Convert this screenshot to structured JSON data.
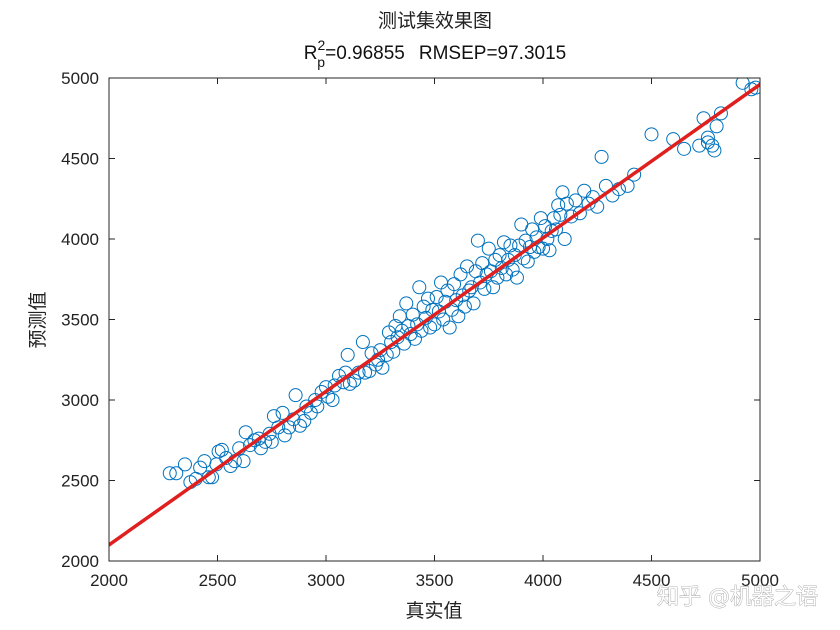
{
  "chart_data": {
    "type": "scatter",
    "title": "测试集效果图",
    "subtitle": {
      "r_base": "R",
      "r_sup": "2",
      "r_sub": "p",
      "r_value": "=0.96855",
      "rmsep": "RMSEP=97.3015"
    },
    "xlabel": "真实值",
    "ylabel": "预测值",
    "xlim": [
      2000,
      5000
    ],
    "ylim": [
      2000,
      5000
    ],
    "xticks": [
      "2000",
      "2500",
      "3000",
      "3500",
      "4000",
      "4500",
      "5000"
    ],
    "yticks": [
      "2000",
      "2500",
      "3000",
      "3500",
      "4000",
      "4500",
      "5000"
    ],
    "grid": false,
    "legend": "none",
    "marker_color": "#0072BD",
    "line_color": "#E01F1F",
    "fit_line": {
      "x": [
        2000,
        5000
      ],
      "y": [
        2100,
        4960
      ]
    },
    "points": [
      [
        2280,
        2545
      ],
      [
        2310,
        2545
      ],
      [
        2350,
        2600
      ],
      [
        2375,
        2490
      ],
      [
        2400,
        2510
      ],
      [
        2420,
        2580
      ],
      [
        2440,
        2620
      ],
      [
        2460,
        2520
      ],
      [
        2475,
        2520
      ],
      [
        2495,
        2600
      ],
      [
        2505,
        2680
      ],
      [
        2520,
        2690
      ],
      [
        2540,
        2640
      ],
      [
        2560,
        2590
      ],
      [
        2580,
        2620
      ],
      [
        2600,
        2700
      ],
      [
        2620,
        2620
      ],
      [
        2630,
        2800
      ],
      [
        2650,
        2720
      ],
      [
        2670,
        2750
      ],
      [
        2690,
        2760
      ],
      [
        2700,
        2700
      ],
      [
        2720,
        2740
      ],
      [
        2740,
        2790
      ],
      [
        2750,
        2740
      ],
      [
        2760,
        2900
      ],
      [
        2780,
        2830
      ],
      [
        2800,
        2920
      ],
      [
        2810,
        2780
      ],
      [
        2830,
        2830
      ],
      [
        2850,
        2880
      ],
      [
        2860,
        3030
      ],
      [
        2880,
        2840
      ],
      [
        2900,
        2870
      ],
      [
        2910,
        2960
      ],
      [
        2930,
        2920
      ],
      [
        2950,
        3000
      ],
      [
        2960,
        2960
      ],
      [
        2980,
        3050
      ],
      [
        3000,
        3080
      ],
      [
        3010,
        3020
      ],
      [
        3030,
        3000
      ],
      [
        3040,
        3090
      ],
      [
        3060,
        3150
      ],
      [
        3080,
        3110
      ],
      [
        3090,
        3170
      ],
      [
        3100,
        3280
      ],
      [
        3110,
        3100
      ],
      [
        3130,
        3120
      ],
      [
        3150,
        3170
      ],
      [
        3170,
        3360
      ],
      [
        3180,
        3170
      ],
      [
        3200,
        3180
      ],
      [
        3210,
        3290
      ],
      [
        3230,
        3220
      ],
      [
        3240,
        3250
      ],
      [
        3250,
        3310
      ],
      [
        3260,
        3200
      ],
      [
        3280,
        3280
      ],
      [
        3290,
        3420
      ],
      [
        3300,
        3360
      ],
      [
        3310,
        3300
      ],
      [
        3320,
        3460
      ],
      [
        3330,
        3390
      ],
      [
        3340,
        3520
      ],
      [
        3350,
        3430
      ],
      [
        3360,
        3350
      ],
      [
        3370,
        3600
      ],
      [
        3380,
        3460
      ],
      [
        3390,
        3410
      ],
      [
        3400,
        3530
      ],
      [
        3410,
        3380
      ],
      [
        3420,
        3470
      ],
      [
        3430,
        3700
      ],
      [
        3440,
        3430
      ],
      [
        3450,
        3580
      ],
      [
        3460,
        3510
      ],
      [
        3470,
        3630
      ],
      [
        3480,
        3450
      ],
      [
        3490,
        3560
      ],
      [
        3500,
        3470
      ],
      [
        3510,
        3640
      ],
      [
        3520,
        3550
      ],
      [
        3530,
        3730
      ],
      [
        3540,
        3500
      ],
      [
        3550,
        3610
      ],
      [
        3560,
        3680
      ],
      [
        3570,
        3450
      ],
      [
        3580,
        3560
      ],
      [
        3590,
        3720
      ],
      [
        3600,
        3620
      ],
      [
        3610,
        3520
      ],
      [
        3620,
        3780
      ],
      [
        3630,
        3650
      ],
      [
        3640,
        3580
      ],
      [
        3650,
        3830
      ],
      [
        3660,
        3680
      ],
      [
        3670,
        3700
      ],
      [
        3680,
        3600
      ],
      [
        3690,
        3800
      ],
      [
        3700,
        3990
      ],
      [
        3710,
        3730
      ],
      [
        3720,
        3850
      ],
      [
        3730,
        3690
      ],
      [
        3740,
        3780
      ],
      [
        3750,
        3940
      ],
      [
        3760,
        3800
      ],
      [
        3770,
        3700
      ],
      [
        3780,
        3870
      ],
      [
        3790,
        3760
      ],
      [
        3800,
        3900
      ],
      [
        3810,
        3820
      ],
      [
        3820,
        3980
      ],
      [
        3830,
        3780
      ],
      [
        3840,
        3870
      ],
      [
        3850,
        3960
      ],
      [
        3860,
        3810
      ],
      [
        3870,
        3900
      ],
      [
        3880,
        3760
      ],
      [
        3890,
        3960
      ],
      [
        3900,
        4090
      ],
      [
        3910,
        3880
      ],
      [
        3920,
        3990
      ],
      [
        3930,
        3860
      ],
      [
        3940,
        3950
      ],
      [
        3950,
        4060
      ],
      [
        3960,
        3920
      ],
      [
        3970,
        4010
      ],
      [
        3980,
        3950
      ],
      [
        3990,
        4130
      ],
      [
        4000,
        3940
      ],
      [
        4010,
        4080
      ],
      [
        4020,
        4000
      ],
      [
        4030,
        3930
      ],
      [
        4040,
        4050
      ],
      [
        4050,
        4130
      ],
      [
        4060,
        4060
      ],
      [
        4070,
        4210
      ],
      [
        4080,
        4150
      ],
      [
        4090,
        4290
      ],
      [
        4100,
        4000
      ],
      [
        4110,
        4220
      ],
      [
        4130,
        4140
      ],
      [
        4150,
        4240
      ],
      [
        4170,
        4160
      ],
      [
        4190,
        4300
      ],
      [
        4210,
        4220
      ],
      [
        4230,
        4260
      ],
      [
        4250,
        4200
      ],
      [
        4270,
        4510
      ],
      [
        4290,
        4330
      ],
      [
        4320,
        4270
      ],
      [
        4350,
        4310
      ],
      [
        4390,
        4330
      ],
      [
        4420,
        4400
      ],
      [
        4500,
        4650
      ],
      [
        4600,
        4620
      ],
      [
        4650,
        4560
      ],
      [
        4720,
        4580
      ],
      [
        4740,
        4750
      ],
      [
        4760,
        4600
      ],
      [
        4780,
        4580
      ],
      [
        4800,
        4700
      ],
      [
        4820,
        4780
      ],
      [
        4760,
        4630
      ],
      [
        4790,
        4550
      ],
      [
        4920,
        4970
      ],
      [
        4960,
        4930
      ],
      [
        4980,
        4940
      ]
    ]
  },
  "watermark": "知乎 @机器之语"
}
